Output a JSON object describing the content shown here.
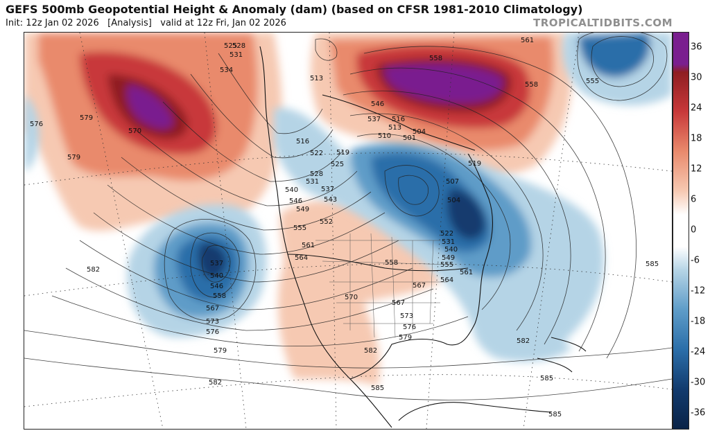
{
  "title": "GEFS 500mb Geopotential Height & Anomaly (dam) (based on CFSR 1981-2010 Climatology)",
  "subtitle": {
    "init": "Init: 12z Jan 02 2026",
    "analysis": "[Analysis]",
    "valid": "valid at 12z Fri, Jan 02 2026"
  },
  "watermark": "TROPICALTIDBITS.COM",
  "colorbar": {
    "ticks": [
      "36",
      "30",
      "24",
      "18",
      "12",
      "6",
      "0",
      "-6",
      "-12",
      "-18",
      "-24",
      "-30",
      "-36"
    ],
    "colors": {
      "purple": "#7a1f8f",
      "dark_red": "#8f1e22",
      "red": "#c8393a",
      "orange": "#e98a6c",
      "light_orange": "#f6c9b2",
      "white": "#ffffff",
      "light_blue": "#b5d4e6",
      "mid_blue": "#5e9cc8",
      "blue": "#2b6ea9",
      "dark_blue": "#123b6e",
      "navy": "#0a2347"
    }
  },
  "contour_labels": [
    {
      "text": "525"
    },
    {
      "text": "528"
    },
    {
      "text": "531"
    },
    {
      "text": "534"
    },
    {
      "text": "576"
    },
    {
      "text": "579"
    },
    {
      "text": "570"
    },
    {
      "text": "579"
    },
    {
      "text": "513"
    },
    {
      "text": "516"
    },
    {
      "text": "519"
    },
    {
      "text": "522"
    },
    {
      "text": "525"
    },
    {
      "text": "528"
    },
    {
      "text": "531"
    },
    {
      "text": "537"
    },
    {
      "text": "540"
    },
    {
      "text": "543"
    },
    {
      "text": "546"
    },
    {
      "text": "549"
    },
    {
      "text": "552"
    },
    {
      "text": "555"
    },
    {
      "text": "561"
    },
    {
      "text": "564"
    },
    {
      "text": "558"
    },
    {
      "text": "570"
    },
    {
      "text": "567"
    },
    {
      "text": "573"
    },
    {
      "text": "576"
    },
    {
      "text": "579"
    },
    {
      "text": "582"
    },
    {
      "text": "585"
    },
    {
      "text": "537"
    },
    {
      "text": "540"
    },
    {
      "text": "546"
    },
    {
      "text": "558"
    },
    {
      "text": "567"
    },
    {
      "text": "573"
    },
    {
      "text": "576"
    },
    {
      "text": "579"
    },
    {
      "text": "582"
    },
    {
      "text": "582"
    },
    {
      "text": "561"
    },
    {
      "text": "558"
    },
    {
      "text": "555"
    },
    {
      "text": "519"
    },
    {
      "text": "516"
    },
    {
      "text": "513"
    },
    {
      "text": "510"
    },
    {
      "text": "504"
    },
    {
      "text": "501"
    },
    {
      "text": "507"
    },
    {
      "text": "504"
    },
    {
      "text": "522"
    },
    {
      "text": "531"
    },
    {
      "text": "540"
    },
    {
      "text": "549"
    },
    {
      "text": "555"
    },
    {
      "text": "561"
    },
    {
      "text": "564"
    },
    {
      "text": "567"
    },
    {
      "text": "585"
    },
    {
      "text": "582"
    },
    {
      "text": "585"
    },
    {
      "text": "585"
    },
    {
      "text": "558"
    },
    {
      "text": "546"
    },
    {
      "text": "537"
    }
  ]
}
